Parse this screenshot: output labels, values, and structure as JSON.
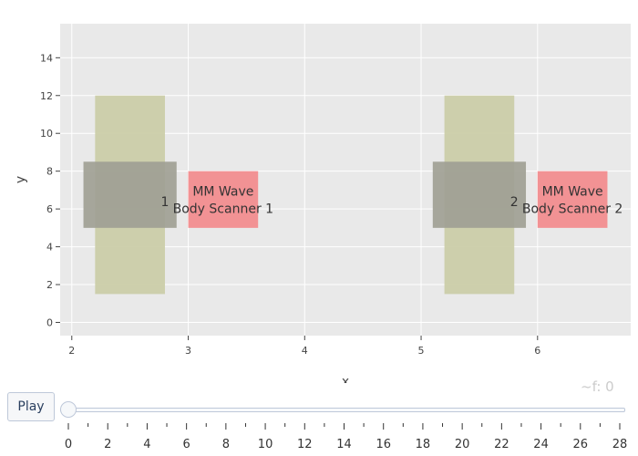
{
  "chart_data": {
    "type": "shapes",
    "xlabel": "x",
    "ylabel": "y",
    "xlim": [
      1.9,
      6.8
    ],
    "ylim": [
      -0.7,
      15.8
    ],
    "x_ticks": [
      2,
      3,
      4,
      5,
      6
    ],
    "y_ticks": [
      0,
      2,
      4,
      6,
      8,
      10,
      12,
      14
    ],
    "grid": true,
    "background": "#e9e9e9",
    "shapes": [
      {
        "name": "frame-1-tall",
        "x0": 2.2,
        "x1": 2.8,
        "y0": 1.5,
        "y1": 12,
        "color": "#cacca6"
      },
      {
        "name": "frame-1-wide",
        "x0": 2.1,
        "x1": 2.9,
        "y0": 5,
        "y1": 8.5,
        "color": "#a0a094"
      },
      {
        "name": "scanner-1",
        "x0": 3.0,
        "x1": 3.6,
        "y0": 5,
        "y1": 8,
        "color": "#f28a8c"
      },
      {
        "name": "frame-2-tall",
        "x0": 5.2,
        "x1": 5.8,
        "y0": 1.5,
        "y1": 12,
        "color": "#cacca6"
      },
      {
        "name": "frame-2-wide",
        "x0": 5.1,
        "x1": 5.9,
        "y0": 5,
        "y1": 8.5,
        "color": "#a0a094"
      },
      {
        "name": "scanner-2",
        "x0": 6.0,
        "x1": 6.6,
        "y0": 5,
        "y1": 8,
        "color": "#f28a8c"
      }
    ],
    "labels": [
      {
        "name": "scanner-1-label",
        "lines": [
          "MM Wave",
          "Body Scanner 1"
        ],
        "x": 3.3,
        "y": 6.5
      },
      {
        "name": "scanner-2-label",
        "lines": [
          "MM Wave",
          "Body Scanner 2"
        ],
        "x": 6.3,
        "y": 6.5
      },
      {
        "name": "frame-1-label-fragment",
        "lines": [
          "1"
        ],
        "x": 2.8,
        "y": 6.4
      },
      {
        "name": "frame-2-label-fragment",
        "lines": [
          "2"
        ],
        "x": 5.8,
        "y": 6.4
      }
    ]
  },
  "controls": {
    "play_label": "Play",
    "frame_readout": "~f: 0",
    "slider_min": 0,
    "slider_max": 28,
    "slider_value": 0,
    "slider_labels": [
      "0",
      "2",
      "4",
      "6",
      "8",
      "10",
      "12",
      "14",
      "16",
      "18",
      "20",
      "22",
      "24",
      "26",
      "28"
    ]
  }
}
